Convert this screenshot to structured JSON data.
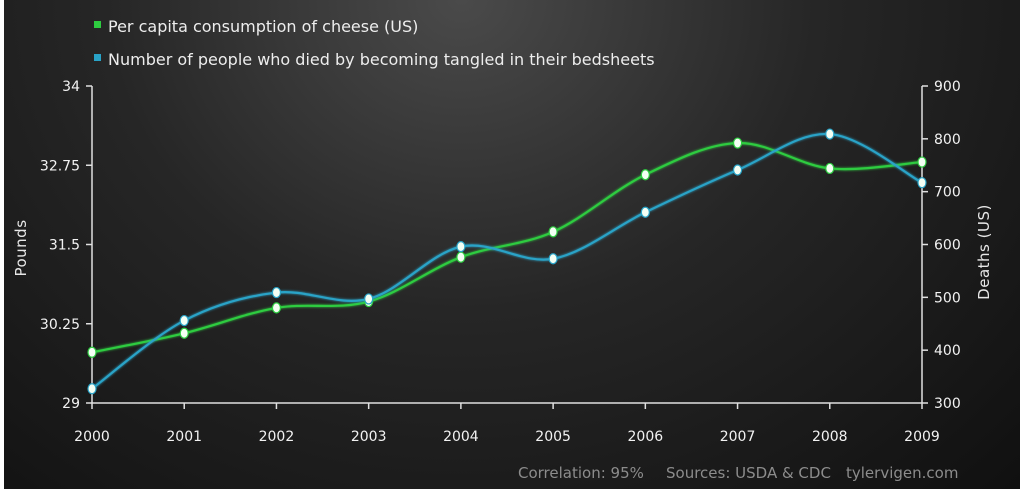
{
  "chart_data": {
    "type": "line",
    "legend_placement": "top-left",
    "grid": false,
    "categories": [
      "2000",
      "2001",
      "2002",
      "2003",
      "2004",
      "2005",
      "2006",
      "2007",
      "2008",
      "2009"
    ],
    "series": [
      {
        "name": "Per capita consumption of cheese (US)",
        "axis": "left",
        "color": "#2ecc40",
        "values": [
          29.8,
          30.1,
          30.5,
          30.6,
          31.3,
          31.7,
          32.6,
          33.1,
          32.7,
          32.8
        ]
      },
      {
        "name": "Number of people who died by becoming tangled in their bedsheets",
        "axis": "right",
        "color": "#29a3c7",
        "values": [
          327,
          456,
          509,
          497,
          596,
          573,
          661,
          741,
          809,
          717
        ]
      }
    ],
    "y_left": {
      "label": "Pounds",
      "ylim": [
        29,
        34
      ],
      "ticks": [
        "29",
        "30.25",
        "31.5",
        "32.75",
        "34"
      ],
      "tick_values": [
        29,
        30.25,
        31.5,
        32.75,
        34
      ]
    },
    "y_right": {
      "label": "Deaths (US)",
      "ylim": [
        300,
        900
      ],
      "ticks": [
        "300",
        "400",
        "500",
        "600",
        "700",
        "800",
        "900"
      ],
      "tick_values": [
        300,
        400,
        500,
        600,
        700,
        800,
        900
      ]
    },
    "footer": {
      "correlation": "Correlation: 95%",
      "sources": "Sources: USDA & CDC",
      "site": "tylervigen.com"
    }
  }
}
